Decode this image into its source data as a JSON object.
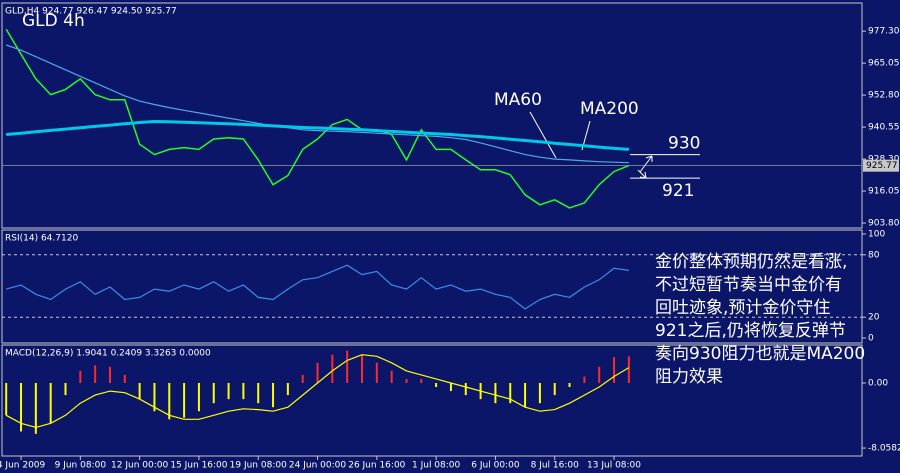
{
  "chart_data": [
    {
      "type": "line",
      "title": "GLD  4h",
      "subtitle": "GLD,H4  924.77 926.47 924.50 925.77",
      "last_price": 925.77,
      "levels": [
        930,
        921
      ],
      "note": [
        "金价整体预期仍然是看涨,",
        "不过短暂节奏当中金价有",
        "回吐迹象,预计金价守住",
        "921之后,仍将恢复反弹节",
        "奏向930阻力也就是MA200",
        "阻力效果"
      ],
      "ylim": [
        901.9,
        987.7
      ],
      "yticks": [
        {
          "value": 977.3,
          "label": "977.30"
        },
        965.05,
        {
          "value": 952.8,
          "label": "952.80"
        },
        940.55,
        {
          "value": 928.3,
          "label": "928.30"
        },
        916.05,
        {
          "value": 903.8,
          "label": "903.80"
        }
      ],
      "series": [
        {
          "color": "#22ff22",
          "values": [
            978,
            968.5,
            959,
            953,
            955,
            959,
            953,
            951,
            951,
            934,
            930,
            932,
            932.7,
            932,
            936,
            936.5,
            936,
            928,
            918.5,
            922,
            932,
            936,
            941.5,
            943.5,
            939.5,
            939.5,
            937.7,
            928,
            939.5,
            932,
            932,
            928,
            924.2,
            924.2,
            922.3,
            914.6,
            910.8,
            912.7,
            909.6,
            911.5,
            918.5,
            923.5,
            925.8
          ]
        },
        {
          "name": "MA60",
          "color": "#4fa8e8",
          "values": [
            972,
            970,
            967.5,
            965,
            962.5,
            960,
            957.5,
            955,
            952.5,
            950.5,
            949.2,
            948,
            947,
            946,
            945,
            944,
            943,
            942,
            941,
            940.3,
            939.5,
            939.2,
            939,
            938.8,
            938.5,
            938.2,
            937.9,
            937.6,
            937.3,
            937,
            936.5,
            935.8,
            934.5,
            933,
            931.5,
            930,
            929,
            928.3,
            928,
            927.6,
            927.3,
            927.1,
            926.9
          ]
        },
        {
          "name": "MA200",
          "color": "#00c8e8",
          "values": [
            937.7,
            938.2,
            938.8,
            939.3,
            939.8,
            940.3,
            940.8,
            941.3,
            941.8,
            942.3,
            942.7,
            942.6,
            942.4,
            942.2,
            942,
            941.8,
            941.6,
            941.3,
            941,
            940.7,
            940.4,
            940.2,
            940,
            939.7,
            939.5,
            939.2,
            938.9,
            938.6,
            938.3,
            938,
            937.7,
            937.3,
            936.9,
            936.4,
            935.9,
            935.4,
            934.9,
            934.4,
            933.9,
            933.4,
            932.9,
            932.4,
            932
          ]
        }
      ]
    },
    {
      "type": "line",
      "title": "RSI(14) 64.7120",
      "ylim": [
        0,
        100
      ],
      "yticks": [
        100,
        80,
        20,
        0
      ],
      "series": [
        {
          "color": "#3a8ee8",
          "values": [
            47,
            51,
            42,
            37,
            47,
            54,
            42,
            49,
            37,
            39,
            47,
            45,
            51,
            47,
            54,
            45,
            51,
            39,
            37,
            47,
            56,
            58,
            64,
            70,
            61,
            64,
            51,
            47,
            58,
            47,
            51,
            45,
            47,
            42,
            39,
            28,
            37,
            42,
            39,
            49,
            56,
            67,
            65
          ]
        }
      ]
    },
    {
      "type": "bar",
      "title": "MACD(12,26,9) 1.9041 0.2409 3.3263 0.0000",
      "ylim": [
        -8.92,
        4.58
      ],
      "yticks": [
        {
          "value": 0,
          "label": "0.00"
        },
        -8.0582
      ],
      "categories": [
        null,
        "4 Jun 2009",
        null,
        null,
        null,
        "9 Jun 08:00",
        null,
        null,
        null,
        "12 Jun 00:00",
        null,
        null,
        null,
        "15 Jun 16:00",
        null,
        null,
        null,
        "19 Jun 08:00",
        null,
        null,
        null,
        "24 Jun 00:00",
        null,
        null,
        null,
        "26 Jun 16:00",
        null,
        null,
        null,
        "1 Jul 08:00",
        null,
        null,
        null,
        "6 Jul 00:00",
        null,
        null,
        null,
        "8 Jul 16:00",
        null,
        null,
        null,
        "13 Jul 08:00",
        null
      ],
      "series": [
        {
          "color": "#ff2a2a",
          "negative_color": "#ffff00",
          "values": [
            -4,
            -6,
            -6.3,
            -5,
            -1.5,
            1.5,
            2.2,
            2,
            1,
            -2,
            -3.5,
            -4.5,
            -4.3,
            -3.5,
            -2.5,
            -2,
            -2,
            -2.5,
            -3,
            -1.5,
            1,
            2.5,
            3.5,
            4,
            3.5,
            2.5,
            1.5,
            0.5,
            0.5,
            -0.5,
            -1,
            -1.5,
            -2,
            -2.5,
            -2.5,
            -3,
            -2.5,
            -1.5,
            -0.5,
            0.8,
            2,
            3.2,
            3.3
          ]
        },
        {
          "type": "line",
          "color": "#ffff00",
          "values": [
            -4,
            -5,
            -5.5,
            -5,
            -4,
            -2.5,
            -1.5,
            -1,
            -1.2,
            -2,
            -3,
            -4,
            -4.5,
            -4.5,
            -4,
            -3.5,
            -3.2,
            -3.3,
            -3.5,
            -3,
            -1.5,
            0,
            1.5,
            2.8,
            3.5,
            3.3,
            2.5,
            1.5,
            1,
            0.5,
            0,
            -0.5,
            -1,
            -1.5,
            -2,
            -3,
            -3.5,
            -3.3,
            -2.5,
            -1.5,
            -0.5,
            0.8,
            1.9
          ]
        }
      ]
    }
  ]
}
